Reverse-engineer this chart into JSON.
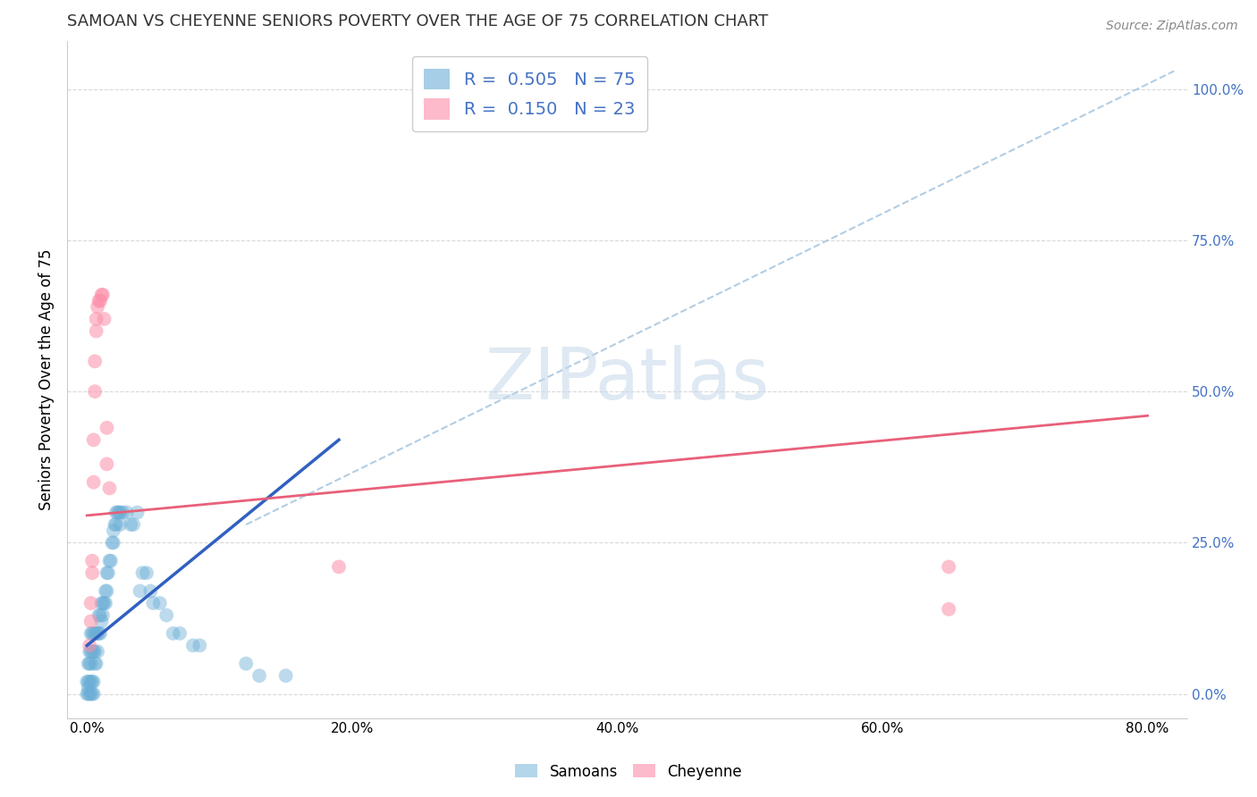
{
  "title": "SAMOAN VS CHEYENNE SENIORS POVERTY OVER THE AGE OF 75 CORRELATION CHART",
  "source": "Source: ZipAtlas.com",
  "xlabel_tick_vals": [
    0.0,
    0.2,
    0.4,
    0.6,
    0.8
  ],
  "ylabel_tick_vals": [
    0.0,
    0.25,
    0.5,
    0.75,
    1.0
  ],
  "xlim": [
    -0.015,
    0.83
  ],
  "ylim": [
    -0.04,
    1.08
  ],
  "ylabel": "Seniors Poverty Over the Age of 75",
  "watermark": "ZIPatlas",
  "samoan_color": "#6baed6",
  "cheyenne_color": "#fc8da8",
  "samoan_line_color": "#3060c0",
  "cheyenne_line_color": "#e8607a",
  "diagonal_color": "#aac8e0",
  "background_color": "#ffffff",
  "grid_color": "#d0d0d0",
  "title_fontsize": 13,
  "axis_label_fontsize": 12,
  "tick_fontsize": 11,
  "source_fontsize": 10,
  "samoan_points": [
    [
      0.0,
      0.0
    ],
    [
      0.0,
      0.02
    ],
    [
      0.001,
      0.0
    ],
    [
      0.001,
      0.01
    ],
    [
      0.001,
      0.02
    ],
    [
      0.001,
      0.05
    ],
    [
      0.002,
      0.0
    ],
    [
      0.002,
      0.02
    ],
    [
      0.002,
      0.05
    ],
    [
      0.002,
      0.07
    ],
    [
      0.003,
      0.0
    ],
    [
      0.003,
      0.02
    ],
    [
      0.003,
      0.05
    ],
    [
      0.003,
      0.07
    ],
    [
      0.003,
      0.1
    ],
    [
      0.004,
      0.0
    ],
    [
      0.004,
      0.02
    ],
    [
      0.004,
      0.07
    ],
    [
      0.004,
      0.1
    ],
    [
      0.005,
      0.0
    ],
    [
      0.005,
      0.02
    ],
    [
      0.005,
      0.07
    ],
    [
      0.005,
      0.1
    ],
    [
      0.006,
      0.05
    ],
    [
      0.006,
      0.07
    ],
    [
      0.006,
      0.1
    ],
    [
      0.007,
      0.05
    ],
    [
      0.007,
      0.1
    ],
    [
      0.008,
      0.07
    ],
    [
      0.008,
      0.1
    ],
    [
      0.009,
      0.1
    ],
    [
      0.009,
      0.13
    ],
    [
      0.01,
      0.1
    ],
    [
      0.01,
      0.13
    ],
    [
      0.011,
      0.12
    ],
    [
      0.011,
      0.15
    ],
    [
      0.012,
      0.13
    ],
    [
      0.012,
      0.15
    ],
    [
      0.013,
      0.15
    ],
    [
      0.014,
      0.15
    ],
    [
      0.014,
      0.17
    ],
    [
      0.015,
      0.17
    ],
    [
      0.015,
      0.2
    ],
    [
      0.016,
      0.2
    ],
    [
      0.017,
      0.22
    ],
    [
      0.018,
      0.22
    ],
    [
      0.019,
      0.25
    ],
    [
      0.02,
      0.25
    ],
    [
      0.02,
      0.27
    ],
    [
      0.021,
      0.28
    ],
    [
      0.022,
      0.28
    ],
    [
      0.022,
      0.3
    ],
    [
      0.023,
      0.3
    ],
    [
      0.024,
      0.3
    ],
    [
      0.025,
      0.28
    ],
    [
      0.025,
      0.3
    ],
    [
      0.027,
      0.3
    ],
    [
      0.03,
      0.3
    ],
    [
      0.033,
      0.28
    ],
    [
      0.035,
      0.28
    ],
    [
      0.038,
      0.3
    ],
    [
      0.04,
      0.17
    ],
    [
      0.042,
      0.2
    ],
    [
      0.045,
      0.2
    ],
    [
      0.048,
      0.17
    ],
    [
      0.05,
      0.15
    ],
    [
      0.055,
      0.15
    ],
    [
      0.06,
      0.13
    ],
    [
      0.065,
      0.1
    ],
    [
      0.07,
      0.1
    ],
    [
      0.08,
      0.08
    ],
    [
      0.085,
      0.08
    ],
    [
      0.12,
      0.05
    ],
    [
      0.13,
      0.03
    ],
    [
      0.15,
      0.03
    ]
  ],
  "cheyenne_points": [
    [
      0.002,
      0.08
    ],
    [
      0.003,
      0.12
    ],
    [
      0.003,
      0.15
    ],
    [
      0.004,
      0.2
    ],
    [
      0.004,
      0.22
    ],
    [
      0.005,
      0.35
    ],
    [
      0.005,
      0.42
    ],
    [
      0.006,
      0.5
    ],
    [
      0.006,
      0.55
    ],
    [
      0.007,
      0.6
    ],
    [
      0.007,
      0.62
    ],
    [
      0.008,
      0.64
    ],
    [
      0.009,
      0.65
    ],
    [
      0.01,
      0.65
    ],
    [
      0.011,
      0.66
    ],
    [
      0.012,
      0.66
    ],
    [
      0.013,
      0.62
    ],
    [
      0.015,
      0.44
    ],
    [
      0.015,
      0.38
    ],
    [
      0.017,
      0.34
    ],
    [
      0.19,
      0.21
    ],
    [
      0.65,
      0.21
    ],
    [
      0.65,
      0.14
    ]
  ]
}
